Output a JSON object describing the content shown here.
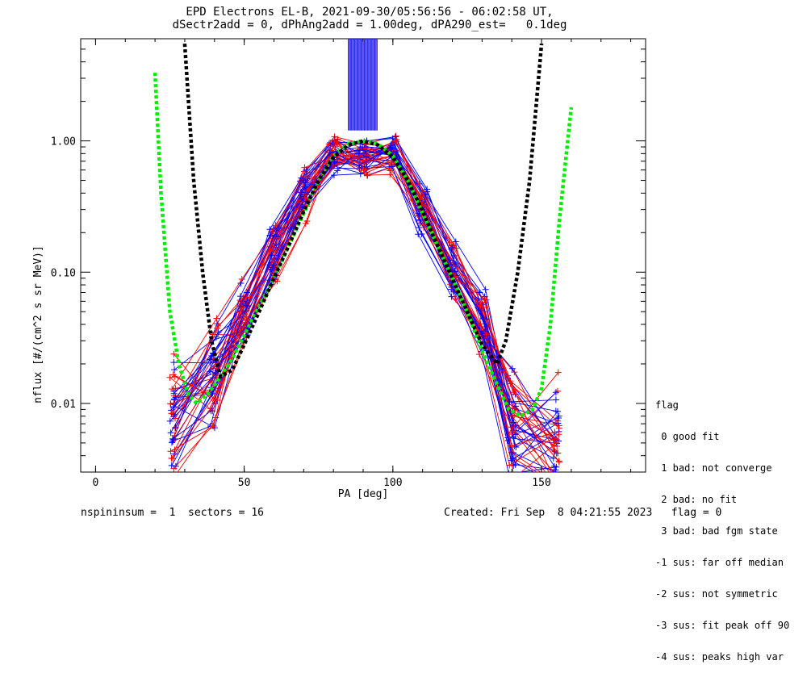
{
  "title": {
    "line1": "EPD Electrons EL-B, 2021-09-30/05:56:56 - 06:02:58 UT,",
    "line2": "dSectr2add = 0, dPhAng2add = 1.00deg, dPA290_est=   0.1deg"
  },
  "footer": {
    "left": "nspininsum =  1  sectors = 16",
    "right": "Created: Fri Sep  8 04:21:55 2023   flag = 0"
  },
  "legend": {
    "title": "flag",
    "items": [
      " 0 good fit",
      " 1 bad: not converge",
      " 2 bad: no fit",
      " 3 bad: bad fgm state",
      "-1 sus: far off median",
      "-2 sus: not symmetric",
      "-3 sus: fit peak off 90",
      "-4 sus: peaks high var"
    ]
  },
  "chart_data": {
    "type": "line",
    "xlabel": "PA [deg]",
    "ylabel": "nflux [#/(cm^2 s sr MeV)]",
    "xlim": [
      -5,
      185
    ],
    "ylim": [
      0.003,
      6.0
    ],
    "yscale": "log",
    "x_ticks": [
      "0",
      "50",
      "100",
      "150"
    ],
    "y_ticks": [
      "0.01",
      "0.10",
      "1.00"
    ],
    "colors": {
      "red": "#ff0000",
      "blue": "#0000ff",
      "black_fit": "#000000",
      "green_fit": "#00ee00"
    },
    "series": [
      {
        "x": [
          26,
          40,
          50,
          60,
          70,
          80,
          90,
          100,
          110,
          120,
          130,
          140,
          155
        ],
        "y": [
          0.008,
          0.014,
          0.05,
          0.16,
          0.4,
          0.88,
          0.78,
          0.85,
          0.34,
          0.12,
          0.05,
          0.008,
          0.005
        ]
      },
      {
        "x": [
          26,
          40,
          50,
          60,
          70,
          80,
          90,
          100,
          110,
          120,
          130,
          140,
          155
        ],
        "y": [
          0.007,
          0.018,
          0.05,
          0.16,
          0.4,
          0.8,
          0.72,
          0.78,
          0.3,
          0.1,
          0.04,
          0.007,
          0.004
        ]
      },
      {
        "x": [
          26,
          40,
          50,
          60,
          70,
          80,
          90,
          100,
          110,
          120,
          130,
          140,
          155
        ],
        "y": [
          0.012,
          0.017,
          0.04,
          0.12,
          0.32,
          0.75,
          0.71,
          0.72,
          0.28,
          0.09,
          0.035,
          0.01,
          0.006
        ]
      },
      {
        "x": [
          26,
          40,
          50,
          60,
          70,
          80,
          90,
          100,
          110,
          120,
          130,
          140,
          155
        ],
        "y": [
          0.006,
          0.022,
          0.07,
          0.2,
          0.5,
          0.9,
          0.8,
          0.88,
          0.38,
          0.14,
          0.06,
          0.009,
          0.008
        ]
      },
      {
        "x": [
          26,
          40,
          50,
          60,
          70,
          80,
          90,
          100,
          110,
          120,
          130,
          140,
          155
        ],
        "y": [
          0.005,
          0.012,
          0.035,
          0.1,
          0.28,
          0.65,
          0.68,
          0.7,
          0.25,
          0.08,
          0.03,
          0.006,
          0.004
        ]
      }
    ],
    "fit_black": {
      "x": [
        30,
        33,
        36,
        39,
        42,
        46,
        50,
        55,
        60,
        65,
        70,
        75,
        80,
        85,
        90,
        95,
        100,
        105,
        110,
        115,
        120,
        125,
        130,
        135,
        138,
        142,
        146,
        150
      ],
      "y": [
        5.5,
        0.5,
        0.1,
        0.03,
        0.016,
        0.018,
        0.028,
        0.05,
        0.09,
        0.16,
        0.29,
        0.5,
        0.75,
        0.93,
        1.0,
        0.93,
        0.75,
        0.5,
        0.29,
        0.16,
        0.09,
        0.05,
        0.028,
        0.02,
        0.03,
        0.1,
        0.5,
        5.5
      ]
    },
    "fit_green": {
      "x": [
        20,
        22,
        25,
        28,
        31,
        34,
        38,
        42,
        46,
        50,
        55,
        60,
        65,
        70,
        75,
        80,
        85,
        90,
        95,
        100,
        105,
        110,
        115,
        120,
        125,
        130,
        135,
        139,
        143,
        147,
        150,
        153,
        156,
        160
      ],
      "y": [
        3.3,
        0.4,
        0.05,
        0.02,
        0.012,
        0.01,
        0.012,
        0.016,
        0.022,
        0.033,
        0.055,
        0.09,
        0.16,
        0.28,
        0.5,
        0.77,
        0.95,
        1.0,
        0.95,
        0.77,
        0.5,
        0.28,
        0.16,
        0.09,
        0.05,
        0.025,
        0.014,
        0.009,
        0.008,
        0.009,
        0.013,
        0.04,
        0.25,
        1.8
      ]
    }
  }
}
